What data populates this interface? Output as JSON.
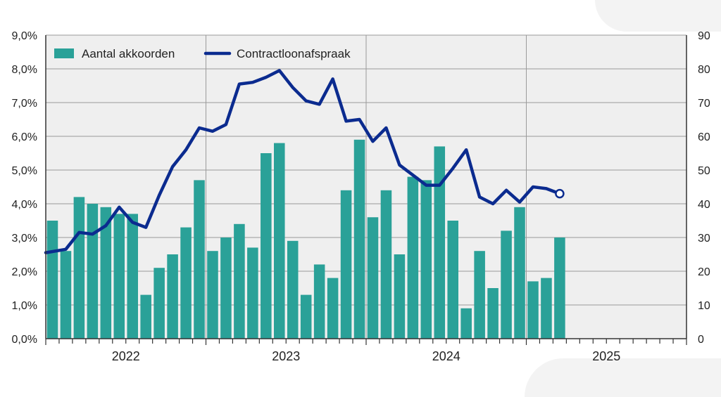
{
  "chart_data": {
    "type": "bar+line",
    "title": "",
    "xlabel": "",
    "ylabel_left": "",
    "ylabel_right": "",
    "x_axis": {
      "years": [
        "2022",
        "2023",
        "2024",
        "2025"
      ],
      "start": "2022-01",
      "end": "2025-12"
    },
    "y_left": {
      "ticks": [
        "0,0%",
        "1,0%",
        "2,0%",
        "3,0%",
        "4,0%",
        "5,0%",
        "6,0%",
        "7,0%",
        "8,0%",
        "9,0%"
      ],
      "ylim": [
        0,
        9
      ]
    },
    "y_right": {
      "ticks": [
        "0",
        "10",
        "20",
        "30",
        "40",
        "50",
        "60",
        "70",
        "80",
        "90"
      ],
      "ylim": [
        0,
        90
      ]
    },
    "grid": true,
    "legend_position": "top-left",
    "colors": {
      "bar": "#2aa198",
      "line": "#0b2b8f",
      "plot_bg": "#efefef",
      "grid": "#9a9a9a"
    },
    "series": [
      {
        "name": "Aantal akkoorden",
        "type": "bar",
        "axis": "right",
        "x": [
          "2022-01",
          "2022-02",
          "2022-03",
          "2022-04",
          "2022-05",
          "2022-06",
          "2022-07",
          "2022-08",
          "2022-09",
          "2022-10",
          "2022-11",
          "2022-12",
          "2023-01",
          "2023-02",
          "2023-03",
          "2023-04",
          "2023-05",
          "2023-06",
          "2023-07",
          "2023-08",
          "2023-09",
          "2023-10",
          "2023-11",
          "2023-12",
          "2024-01",
          "2024-02",
          "2024-03",
          "2024-04",
          "2024-05",
          "2024-06",
          "2024-07",
          "2024-08",
          "2024-09",
          "2024-10",
          "2024-11",
          "2024-12",
          "2025-01",
          "2025-02",
          "2025-03"
        ],
        "values": [
          35,
          26,
          42,
          40,
          39,
          37,
          37,
          13,
          21,
          25,
          33,
          47,
          26,
          30,
          34,
          27,
          55,
          58,
          29,
          13,
          22,
          18,
          44,
          59,
          36,
          44,
          25,
          48,
          47,
          57,
          35,
          9,
          26,
          15,
          32,
          39,
          17,
          18,
          30
        ]
      },
      {
        "name": "Contractloonafspraak",
        "type": "line",
        "axis": "left",
        "x": [
          "2022-01",
          "2022-02",
          "2022-03",
          "2022-04",
          "2022-05",
          "2022-06",
          "2022-07",
          "2022-08",
          "2022-09",
          "2022-10",
          "2022-11",
          "2022-12",
          "2023-01",
          "2023-02",
          "2023-03",
          "2023-04",
          "2023-05",
          "2023-06",
          "2023-07",
          "2023-08",
          "2023-09",
          "2023-10",
          "2023-11",
          "2023-12",
          "2024-01",
          "2024-02",
          "2024-03",
          "2024-04",
          "2024-05",
          "2024-06",
          "2024-07",
          "2024-08",
          "2024-09",
          "2024-10",
          "2024-11",
          "2024-12",
          "2025-01",
          "2025-02",
          "2025-03"
        ],
        "values": [
          2.55,
          2.65,
          3.15,
          3.1,
          3.35,
          3.9,
          3.45,
          3.3,
          4.25,
          5.1,
          5.6,
          6.25,
          6.15,
          6.35,
          7.55,
          7.6,
          7.75,
          7.95,
          7.45,
          7.05,
          6.95,
          7.7,
          6.45,
          6.5,
          5.85,
          6.25,
          5.15,
          4.85,
          4.55,
          4.55,
          5.05,
          5.6,
          4.2,
          4.0,
          4.4,
          4.05,
          4.5,
          4.45,
          4.3
        ],
        "last_point_marker": "open-circle"
      }
    ]
  }
}
